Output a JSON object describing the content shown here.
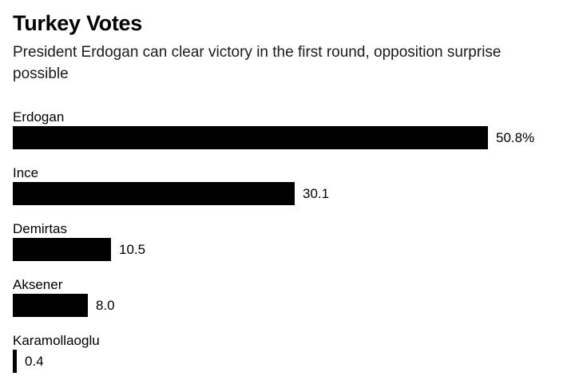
{
  "header": {
    "title": "Turkey Votes",
    "subtitle": "President Erdogan can clear victory in the first round, opposition surprise possible"
  },
  "colors": {
    "bar": "#000000",
    "background": "#ffffff",
    "text": "#000000"
  },
  "chart_data": {
    "type": "bar",
    "orientation": "horizontal",
    "title": "Turkey Votes",
    "subtitle": "President Erdogan can clear victory in the first round, opposition surprise possible",
    "categories": [
      "Erdogan",
      "Ince",
      "Demirtas",
      "Aksener",
      "Karamollaoglu"
    ],
    "values": [
      50.8,
      30.1,
      10.5,
      8.0,
      0.4
    ],
    "value_labels": [
      "50.8%",
      "30.1",
      "10.5",
      "8.0",
      "0.4"
    ],
    "unit": "percent",
    "xlabel": "",
    "ylabel": "",
    "xlim": [
      0,
      50.8
    ],
    "grid": false,
    "legend": false,
    "bar_color": "#000000"
  }
}
